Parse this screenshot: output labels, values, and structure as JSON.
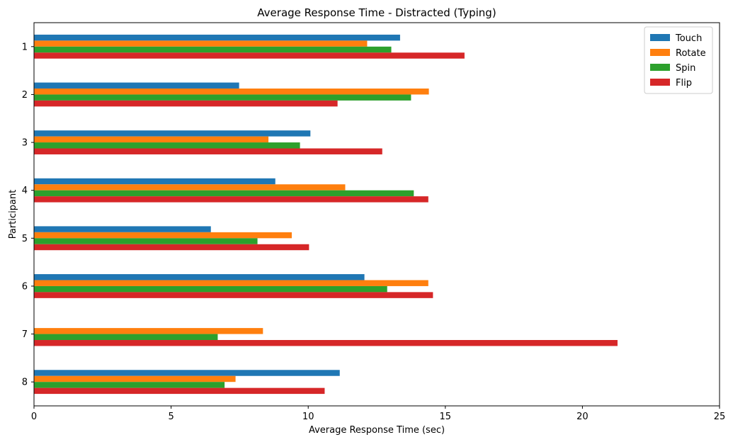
{
  "chart_data": {
    "type": "bar",
    "orientation": "horizontal",
    "title": "Average Response Time - Distracted (Typing)",
    "xlabel": "Average Response Time (sec)",
    "ylabel": "Participant",
    "xlim": [
      0,
      25
    ],
    "xticks": [
      0,
      5,
      10,
      15,
      20,
      25
    ],
    "categories": [
      "1",
      "2",
      "3",
      "4",
      "5",
      "6",
      "7",
      "8"
    ],
    "series": [
      {
        "name": "Touch",
        "color": "#1f77b4",
        "values": [
          13.35,
          7.48,
          10.08,
          8.8,
          6.45,
          12.05,
          0,
          11.15
        ]
      },
      {
        "name": "Rotate",
        "color": "#ff7f0e",
        "values": [
          12.15,
          14.4,
          8.55,
          11.35,
          9.4,
          14.38,
          8.35,
          7.35
        ]
      },
      {
        "name": "Spin",
        "color": "#2ca02c",
        "values": [
          13.03,
          13.75,
          9.7,
          13.85,
          8.15,
          12.88,
          6.7,
          6.95
        ]
      },
      {
        "name": "Flip",
        "color": "#d62728",
        "values": [
          15.7,
          11.07,
          12.7,
          14.38,
          10.03,
          14.55,
          21.28,
          10.6
        ]
      }
    ],
    "legend_position": "top-right",
    "grid": false
  }
}
